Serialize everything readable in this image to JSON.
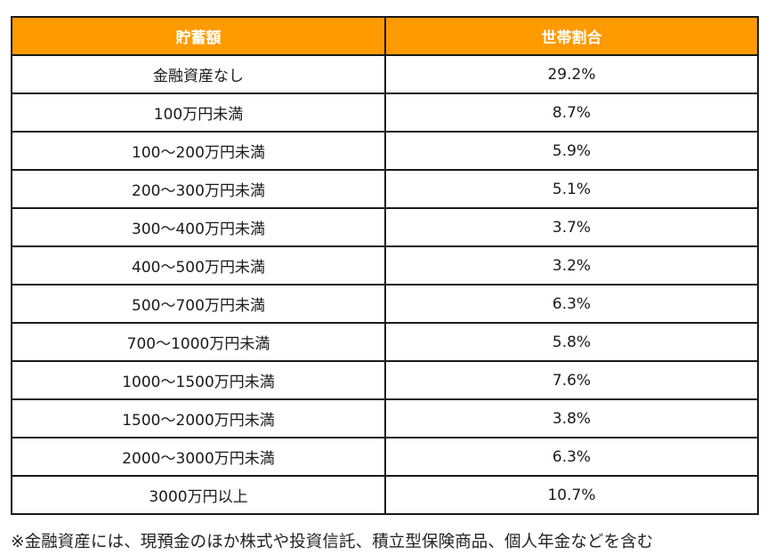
{
  "table": {
    "header_color": "#ff9a00",
    "headers": [
      "貯蓄額",
      "世帯割合"
    ],
    "rows": [
      {
        "label": "金融資産なし",
        "value": "29.2%"
      },
      {
        "label": "100万円未満",
        "value": "8.7%"
      },
      {
        "label": "100～200万円未満",
        "value": "5.9%"
      },
      {
        "label": "200～300万円未満",
        "value": "5.1%"
      },
      {
        "label": "300～400万円未満",
        "value": "3.7%"
      },
      {
        "label": "400～500万円未満",
        "value": "3.2%"
      },
      {
        "label": "500～700万円未満",
        "value": "6.3%"
      },
      {
        "label": "700～1000万円未満",
        "value": "5.8%"
      },
      {
        "label": "1000～1500万円未満",
        "value": "7.6%"
      },
      {
        "label": "1500～2000万円未満",
        "value": "3.8%"
      },
      {
        "label": "2000～3000万円未満",
        "value": "6.3%"
      },
      {
        "label": "3000万円以上",
        "value": "10.7%"
      }
    ]
  },
  "footnote": "※金融資産には、現預金のほか株式や投資信託、積立型保険商品、個人年金などを含む"
}
